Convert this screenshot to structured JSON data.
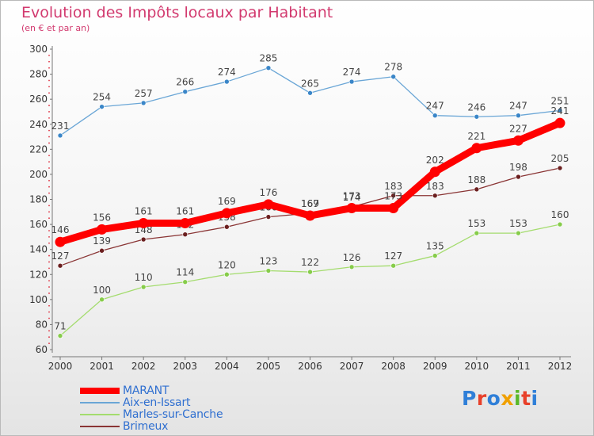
{
  "title": "Evolution des Impôts locaux par Habitant",
  "subtitle": "(en € et par an)",
  "logo": {
    "text": "Proxiti",
    "letter_colors": [
      "#2f7fd8",
      "#e8402a",
      "#2f7fd8",
      "#f0a000",
      "#5ab82a",
      "#e8402a",
      "#2f7fd8"
    ]
  },
  "chart_data": {
    "type": "line",
    "categories": [
      "2000",
      "2001",
      "2002",
      "2003",
      "2004",
      "2005",
      "2006",
      "2007",
      "2008",
      "2009",
      "2010",
      "2011",
      "2012"
    ],
    "ylim": [
      60,
      300
    ],
    "yticks": [
      60,
      80,
      100,
      120,
      140,
      160,
      180,
      200,
      220,
      240,
      260,
      280,
      300
    ],
    "grid": false,
    "legend_position": "bottom-left",
    "series": [
      {
        "name": "MARANT",
        "color": "#ff0000",
        "marker_color": "#ff0000",
        "emphasis": true,
        "values": [
          146,
          156,
          161,
          161,
          169,
          176,
          167,
          173,
          173,
          202,
          221,
          227,
          241
        ]
      },
      {
        "name": "Aix-en-Issart",
        "color": "#6aa6d6",
        "marker_color": "#3a86c8",
        "emphasis": false,
        "values": [
          231,
          254,
          257,
          266,
          274,
          285,
          265,
          274,
          278,
          247,
          246,
          247,
          251
        ]
      },
      {
        "name": "Marles-sur-Canche",
        "color": "#a4dc6e",
        "marker_color": "#86cc4a",
        "emphasis": false,
        "values": [
          71,
          100,
          110,
          114,
          120,
          123,
          122,
          126,
          127,
          135,
          153,
          153,
          160
        ]
      },
      {
        "name": "Brimeux",
        "color": "#8a3535",
        "marker_color": "#6b1f1f",
        "emphasis": false,
        "values": [
          127,
          139,
          148,
          152,
          158,
          166,
          169,
          174,
          183,
          183,
          188,
          198,
          205
        ]
      }
    ]
  }
}
